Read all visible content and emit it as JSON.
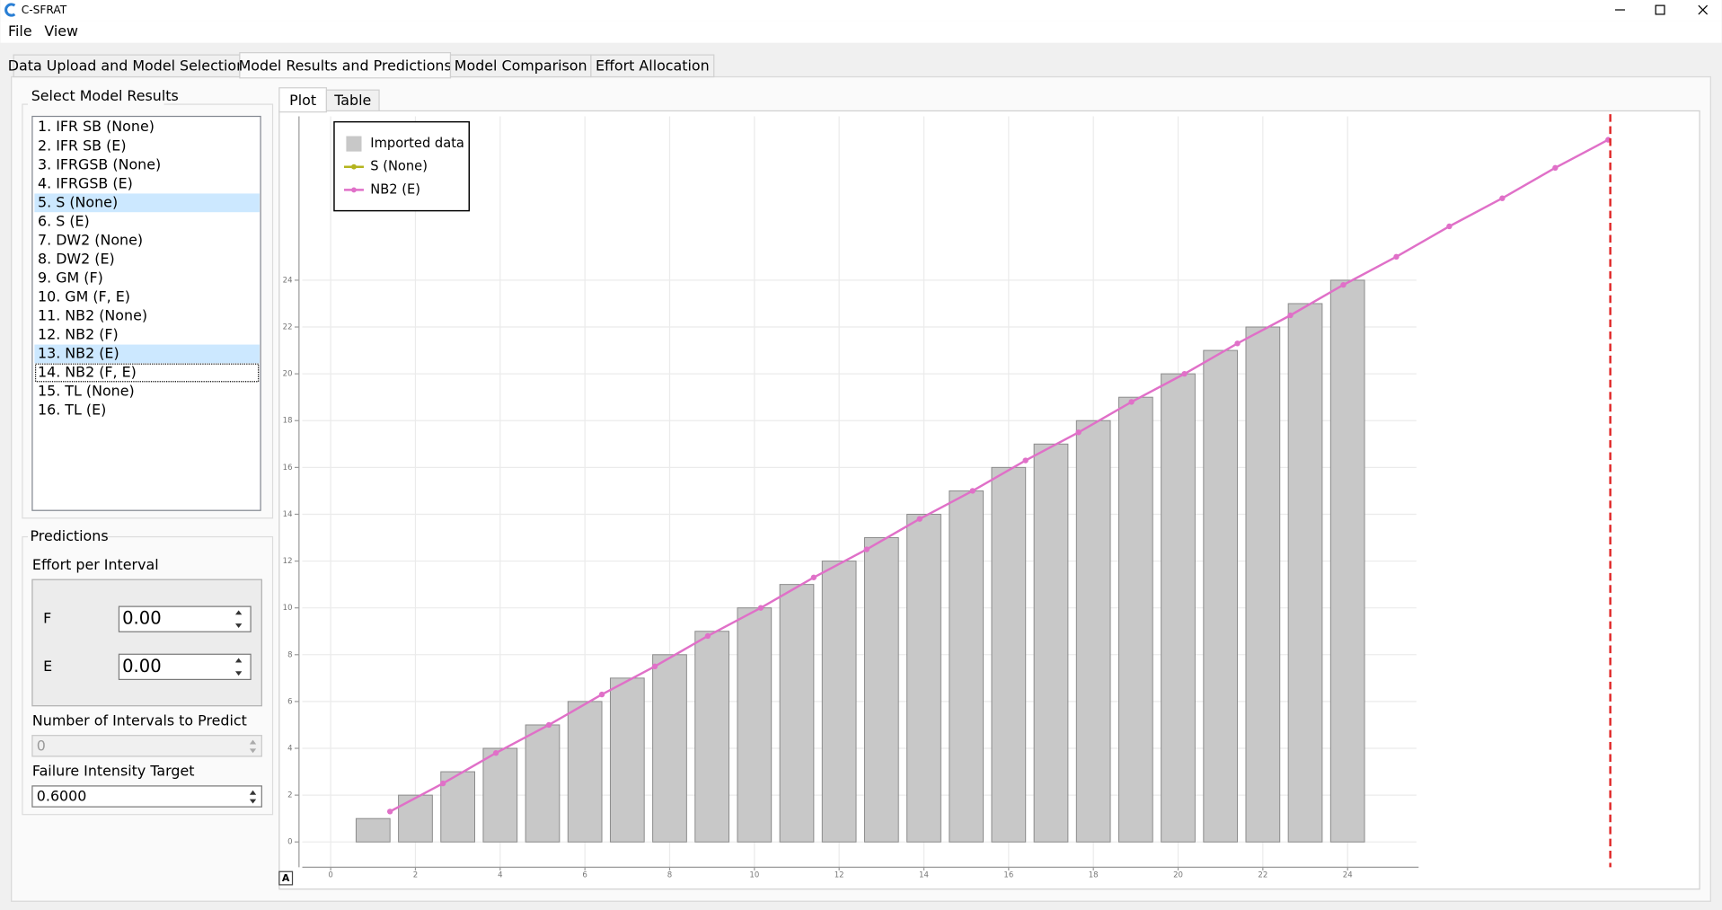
{
  "window": {
    "title": "C-SFRAT"
  },
  "menu": [
    "File",
    "View"
  ],
  "tabs": [
    "Data Upload and Model Selection",
    "Model Results and Predictions",
    "Model Comparison",
    "Effort Allocation"
  ],
  "model_results": {
    "title": "Select Model Results",
    "items": [
      "1. IFR SB (None)",
      "2. IFR SB (E)",
      "3. IFRGSB (None)",
      "4. IFRGSB (E)",
      "5. S (None)",
      "6. S (E)",
      "7. DW2 (None)",
      "8. DW2 (E)",
      "9. GM (F)",
      "10. GM (F, E)",
      "11. NB2 (None)",
      "12. NB2 (F)",
      "13. NB2 (E)",
      "14. NB2 (F, E)",
      "15. TL (None)",
      "16. TL (E)"
    ]
  },
  "predictions": {
    "title": "Predictions",
    "effort_label": "Effort per Interval",
    "fields": [
      {
        "label": "F",
        "value": "0.00"
      },
      {
        "label": "E",
        "value": "0.00"
      }
    ],
    "intervals_label": "Number of Intervals to Predict",
    "intervals_value": "0",
    "target_label": "Failure Intensity Target",
    "target_value": "0.6000"
  },
  "subtabs": [
    "Plot",
    "Table"
  ],
  "chart_data": {
    "type": "bar",
    "xlim": [
      -0.67,
      32.23
    ],
    "ylim": [
      0,
      31
    ],
    "xticks": [
      0,
      2,
      4,
      6,
      8,
      10,
      12,
      14,
      16,
      18,
      20,
      22,
      24
    ],
    "yticks": [
      0,
      2,
      4,
      6,
      8,
      10,
      12,
      14,
      16,
      18,
      20,
      22,
      24
    ],
    "grid": true,
    "legend": "top-left",
    "vline_x": 30.2,
    "vline_color": "#e02828",
    "series": [
      {
        "name": "Imported data",
        "type": "bar",
        "color": "#c8c8c8",
        "x": [
          1,
          2,
          3,
          4,
          5,
          6,
          7,
          8,
          9,
          10,
          11,
          12,
          13,
          14,
          15,
          16,
          17,
          18,
          19,
          20,
          21,
          22,
          23,
          24
        ],
        "values": [
          1,
          2,
          3,
          4,
          5,
          6,
          7,
          8,
          9,
          10,
          11,
          12,
          13,
          14,
          15,
          16,
          17,
          18,
          19,
          20,
          21,
          22,
          23,
          24
        ]
      },
      {
        "name": "S (None)",
        "type": "line",
        "color": "#b4b41e",
        "x": [],
        "values": []
      },
      {
        "name": "NB2 (E)",
        "type": "line",
        "color": "#e070c8",
        "x": [
          1.4,
          2.65,
          3.9,
          5.15,
          6.4,
          7.65,
          8.9,
          10.15,
          11.4,
          12.65,
          13.9,
          15.15,
          16.4,
          17.65,
          18.9,
          20.15,
          21.4,
          22.65,
          23.9,
          25.15,
          26.4,
          27.65,
          28.9,
          30.15
        ],
        "values": [
          1.3,
          2.5,
          3.8,
          5.0,
          6.3,
          7.5,
          8.8,
          10.0,
          11.3,
          12.5,
          13.8,
          15.0,
          16.3,
          17.5,
          18.8,
          20.0,
          21.3,
          22.5,
          23.8,
          25.0,
          26.3,
          27.5,
          28.8,
          30.0
        ]
      }
    ]
  }
}
